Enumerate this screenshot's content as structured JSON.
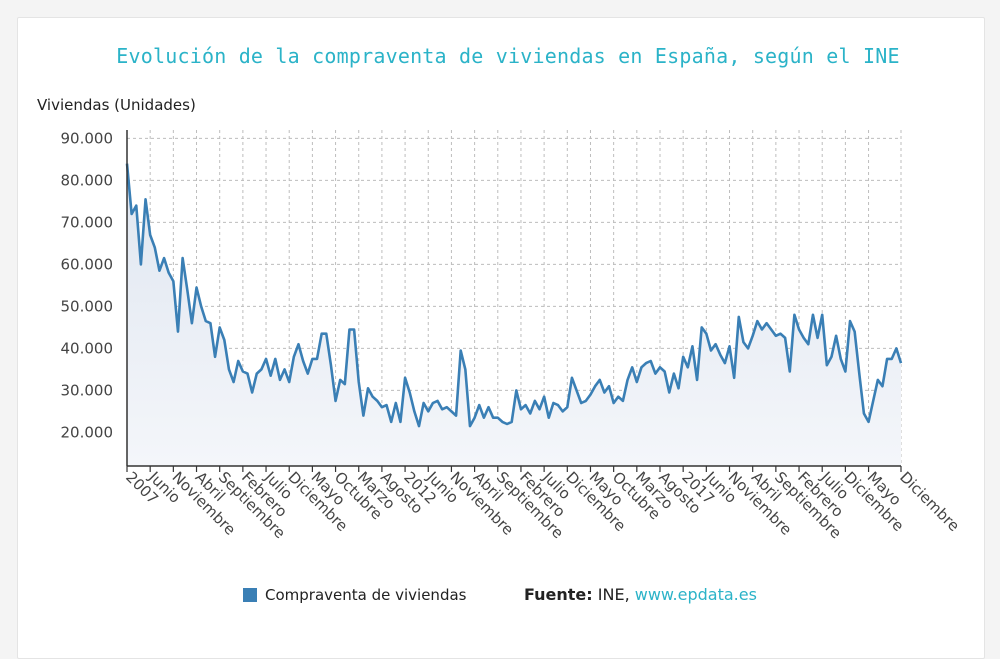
{
  "chart_data": {
    "type": "area",
    "title": "Evolución de la compraventa de viviendas en España, según el INE",
    "ylabel": "Viviendas (Unidades)",
    "xlabel": "",
    "ylim": [
      12000,
      92000
    ],
    "yticks": [
      "90.000",
      "80.000",
      "70.000",
      "60.000",
      "50.000",
      "40.000",
      "30.000",
      "20.000"
    ],
    "ytick_values": [
      90000,
      80000,
      70000,
      60000,
      50000,
      40000,
      30000,
      20000
    ],
    "grid": true,
    "x_tick_labels": [
      "2007",
      "Junio",
      "Noviembre",
      "Abril",
      "Septiembre",
      "Febrero",
      "Julio",
      "Diciembre",
      "Mayo",
      "Octubre",
      "Marzo",
      "Agosto",
      "2012",
      "Junio",
      "Noviembre",
      "Abril",
      "Septiembre",
      "Febrero",
      "Julio",
      "Diciembre",
      "Mayo",
      "Octubre",
      "Marzo",
      "Agosto",
      "2017",
      "Junio",
      "Noviembre",
      "Abril",
      "Septiembre",
      "Febrero",
      "Julio",
      "Diciembre",
      "Mayo",
      "Diciembre"
    ],
    "x_tick_month_index": [
      0,
      5,
      10,
      15,
      20,
      25,
      30,
      35,
      40,
      45,
      50,
      55,
      60,
      65,
      70,
      75,
      80,
      85,
      90,
      95,
      100,
      105,
      110,
      115,
      120,
      125,
      130,
      135,
      140,
      145,
      150,
      155,
      160,
      167
    ],
    "series": [
      {
        "name": "Compraventa de viviendas",
        "color": "#3a7fb5",
        "values": [
          84000,
          72000,
          74000,
          60000,
          75500,
          67000,
          64000,
          58500,
          61500,
          58000,
          56000,
          44000,
          61500,
          54000,
          46000,
          54500,
          50000,
          46500,
          46000,
          38000,
          45000,
          42000,
          35000,
          32000,
          37000,
          34500,
          34000,
          29500,
          34000,
          35000,
          37500,
          33500,
          37500,
          32500,
          35000,
          32000,
          38000,
          41000,
          37000,
          34000,
          37500,
          37500,
          43500,
          43500,
          36000,
          27500,
          32500,
          31500,
          44500,
          44500,
          32000,
          24000,
          30500,
          28500,
          27500,
          26000,
          26500,
          22500,
          27000,
          22500,
          33000,
          29500,
          25000,
          21500,
          27000,
          25000,
          27000,
          27500,
          25500,
          26000,
          25000,
          24000,
          39500,
          35000,
          21500,
          23500,
          26500,
          23500,
          26000,
          23500,
          23500,
          22500,
          22000,
          22500,
          30000,
          25500,
          26500,
          24500,
          27500,
          25500,
          28500,
          23500,
          27000,
          26500,
          25000,
          26000,
          33000,
          30000,
          27000,
          27500,
          29000,
          31000,
          32500,
          29500,
          31000,
          27000,
          28500,
          27500,
          32500,
          35500,
          32000,
          35500,
          36500,
          37000,
          34000,
          35500,
          34500,
          29500,
          34000,
          30500,
          38000,
          35500,
          40500,
          32500,
          45000,
          43500,
          39500,
          41000,
          38500,
          36500,
          40500,
          33000,
          47500,
          41500,
          40000,
          43000,
          46500,
          44500,
          46000,
          44500,
          43000,
          43500,
          42500,
          34500,
          48000,
          44500,
          42500,
          41000,
          48000,
          42500,
          48000,
          36000,
          38000,
          43000,
          37500,
          34500,
          46500,
          44000,
          34000,
          24500,
          22500,
          27500,
          32500,
          31000,
          37500,
          37500,
          40000,
          36500
        ]
      }
    ]
  },
  "legend": {
    "label": "Compraventa de viviendas"
  },
  "source": {
    "label": "Fuente:",
    "name": "INE,",
    "url": "www.epdata.es"
  }
}
